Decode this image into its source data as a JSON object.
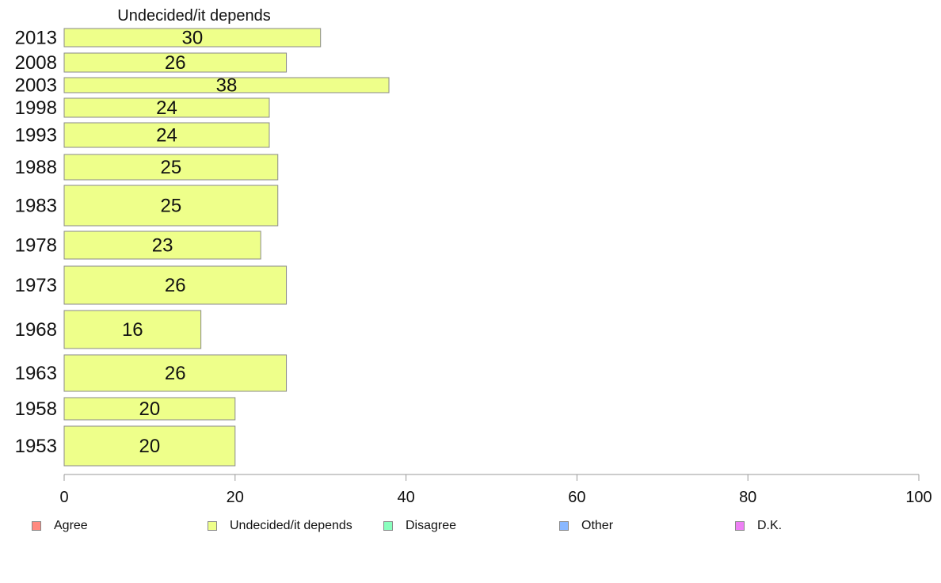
{
  "chart_data": {
    "type": "bar",
    "orientation": "horizontal",
    "title": "Undecided/it depends",
    "categories": [
      "2013",
      "2008",
      "2003",
      "1998",
      "1993",
      "1988",
      "1983",
      "1978",
      "1973",
      "1968",
      "1963",
      "1958",
      "1953"
    ],
    "values": [
      30,
      26,
      38,
      24,
      24,
      25,
      25,
      23,
      26,
      16,
      26,
      20,
      20
    ],
    "xlim": [
      0,
      100
    ],
    "xticks": [
      "0",
      "20",
      "40",
      "60",
      "80",
      "100"
    ],
    "grid": false,
    "bar_color": "#EEFF8A",
    "bar_edge_color": "#8A8A8A",
    "legend_position": "bottom",
    "legend": [
      {
        "label": "Agree",
        "color": "#FF8A80"
      },
      {
        "label": "Undecided/it depends",
        "color": "#EEFF8A"
      },
      {
        "label": "Disagree",
        "color": "#8AFFBE"
      },
      {
        "label": "Other",
        "color": "#8AB8FF"
      },
      {
        "label": "D.K.",
        "color": "#EE80F5"
      }
    ]
  }
}
